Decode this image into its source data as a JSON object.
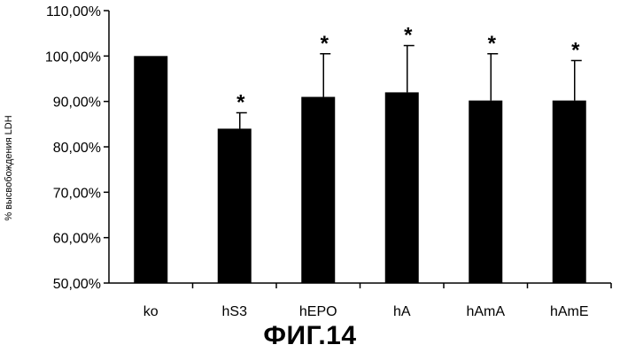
{
  "chart_data": {
    "type": "bar",
    "categories": [
      "ko",
      "hS3",
      "hEPO",
      "hA",
      "hAmA",
      "hAmE"
    ],
    "values": [
      100.0,
      84.0,
      91.0,
      92.0,
      90.2,
      90.2
    ],
    "error_upper": [
      0,
      3.5,
      9.5,
      10.3,
      10.3,
      8.8
    ],
    "significance_markers": [
      "",
      "*",
      "*",
      "*",
      "*",
      "*"
    ],
    "ylabel": "% высвобождения LDH",
    "xlabel": "",
    "ylim": [
      50,
      110
    ],
    "y_ticks": [
      50,
      60,
      70,
      80,
      90,
      100,
      110
    ],
    "y_tick_labels": [
      "50,00%",
      "60,00%",
      "70,00%",
      "80,00%",
      "90,00%",
      "100,00%",
      "110,00%"
    ],
    "grid": false,
    "bar_color": "#000000"
  },
  "figure_caption": "ФИГ.14"
}
